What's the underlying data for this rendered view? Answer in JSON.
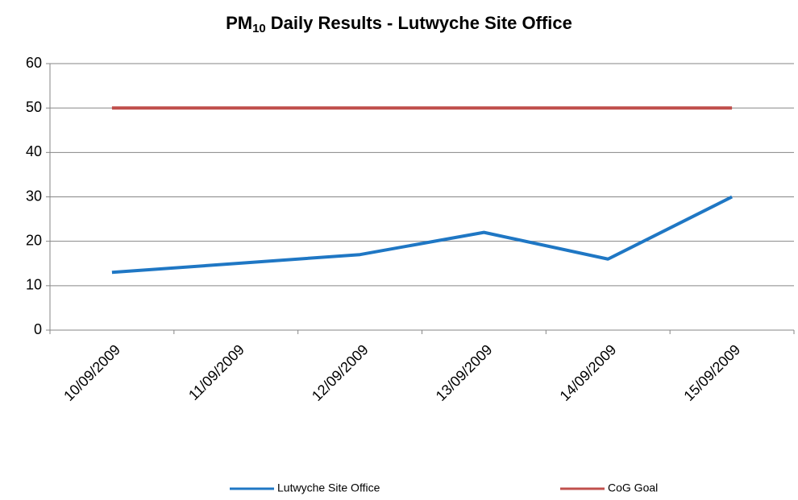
{
  "chart_data": {
    "type": "line",
    "title": {
      "main": "PM",
      "subscript": "10",
      "rest": "Daily Results - Lutwyche Site Office"
    },
    "categories": [
      "10/09/2009",
      "11/09/2009",
      "12/09/2009",
      "13/09/2009",
      "14/09/2009",
      "15/09/2009"
    ],
    "series": [
      {
        "name": "Lutwyche Site Office",
        "color": "#1f77c4",
        "values": [
          13,
          15,
          17,
          22,
          16,
          30
        ]
      },
      {
        "name": "CoG Goal",
        "color": "#c0504d",
        "values": [
          50,
          50,
          50,
          50,
          50,
          50
        ]
      }
    ],
    "ylim": [
      0,
      60
    ],
    "yticks": [
      0,
      10,
      20,
      30,
      40,
      50,
      60
    ],
    "grid": true,
    "legend": "bottom"
  }
}
